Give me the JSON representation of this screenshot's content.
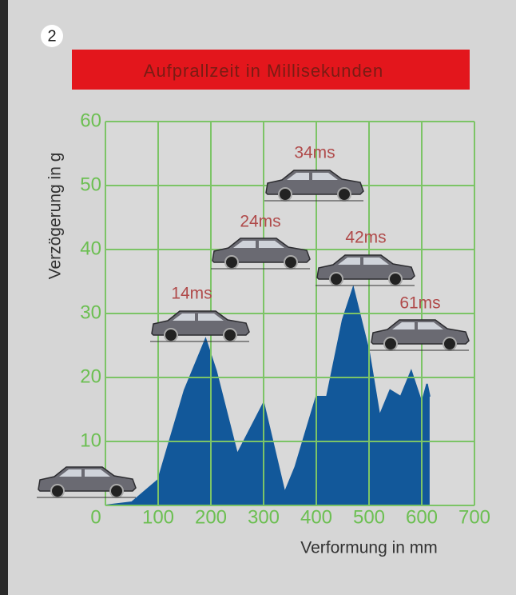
{
  "chart_data": {
    "type": "area",
    "title": "Aufprallzeit in Millisekunden",
    "panel_number": "2",
    "x_label": "Verformung in mm",
    "y_label": "Verzögerung in g",
    "x": [
      0,
      50,
      100,
      150,
      190,
      210,
      250,
      300,
      340,
      360,
      400,
      420,
      450,
      470,
      500,
      520,
      540,
      560,
      580,
      600,
      610,
      615
    ],
    "values": [
      0,
      0.5,
      4,
      18,
      26,
      21,
      8,
      16,
      2,
      6,
      17,
      17,
      29,
      34,
      24,
      14,
      18,
      17,
      21,
      16,
      19,
      17
    ],
    "color": "#12589a",
    "grid_color": "#7cc466",
    "xlim": [
      0,
      700
    ],
    "ylim": [
      0,
      60
    ],
    "xticks": [
      100,
      200,
      300,
      400,
      500,
      600,
      700
    ],
    "yticks": [
      0,
      10,
      20,
      30,
      40,
      50,
      60
    ],
    "grid": true,
    "annotations": [
      "14ms",
      "24ms",
      "34ms",
      "42ms",
      "61ms"
    ]
  }
}
